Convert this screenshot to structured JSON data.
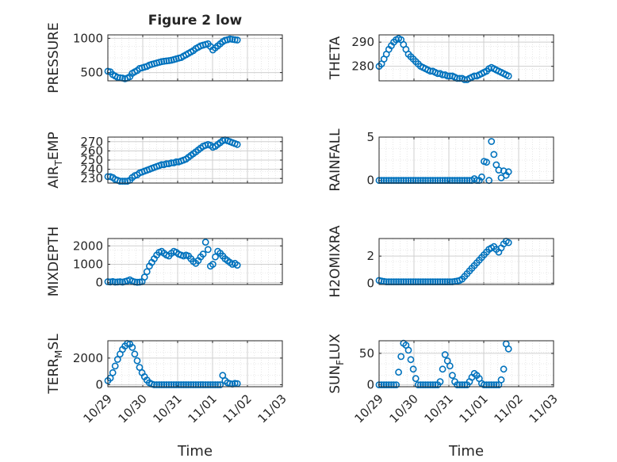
{
  "figure": {
    "title": "Figure 2 low",
    "xlabel_left": "Time",
    "xlabel_right": "Time",
    "marker_color": "#0072BD",
    "x_tick_labels": [
      "10/29",
      "10/30",
      "10/31",
      "11/01",
      "11/02",
      "11/03"
    ]
  },
  "chart_data": [
    {
      "type": "scatter",
      "name": "pressure",
      "title": "Figure 2 low",
      "ylabel": "PRESSURE",
      "xlabel": "",
      "xlim": [
        0,
        5
      ],
      "ylim": [
        380,
        1050
      ],
      "yticks": [
        500,
        1000
      ],
      "grid": true,
      "x": [
        0.0,
        0.07,
        0.14,
        0.21,
        0.28,
        0.35,
        0.42,
        0.49,
        0.56,
        0.63,
        0.7,
        0.77,
        0.84,
        0.91,
        0.98,
        1.05,
        1.12,
        1.19,
        1.26,
        1.33,
        1.4,
        1.47,
        1.54,
        1.61,
        1.68,
        1.75,
        1.82,
        1.89,
        1.96,
        2.03,
        2.1,
        2.17,
        2.24,
        2.31,
        2.38,
        2.45,
        2.52,
        2.59,
        2.66,
        2.73,
        2.8,
        2.87,
        2.94,
        3.01,
        3.08,
        3.15,
        3.22,
        3.29,
        3.36,
        3.43,
        3.5,
        3.57,
        3.64,
        3.71
      ],
      "y": [
        520,
        510,
        470,
        450,
        430,
        425,
        420,
        410,
        420,
        440,
        490,
        510,
        530,
        560,
        570,
        580,
        590,
        610,
        620,
        630,
        640,
        650,
        660,
        665,
        670,
        675,
        680,
        690,
        700,
        710,
        720,
        740,
        760,
        780,
        800,
        820,
        850,
        870,
        890,
        900,
        910,
        920,
        880,
        830,
        860,
        890,
        920,
        950,
        970,
        980,
        990,
        985,
        980,
        975
      ]
    },
    {
      "type": "scatter",
      "name": "theta",
      "ylabel": "THETA",
      "xlabel": "",
      "xlim": [
        0,
        5
      ],
      "ylim": [
        274,
        293
      ],
      "yticks": [
        280,
        290
      ],
      "grid": true,
      "x": [
        0.0,
        0.07,
        0.14,
        0.21,
        0.28,
        0.35,
        0.42,
        0.49,
        0.56,
        0.63,
        0.7,
        0.77,
        0.84,
        0.91,
        0.98,
        1.05,
        1.12,
        1.19,
        1.26,
        1.33,
        1.4,
        1.47,
        1.54,
        1.61,
        1.68,
        1.75,
        1.82,
        1.89,
        1.96,
        2.03,
        2.1,
        2.17,
        2.24,
        2.31,
        2.38,
        2.45,
        2.52,
        2.59,
        2.66,
        2.73,
        2.8,
        2.87,
        2.94,
        3.01,
        3.08,
        3.15,
        3.22,
        3.29,
        3.36,
        3.43,
        3.5,
        3.57,
        3.64,
        3.71
      ],
      "y": [
        280,
        281,
        283,
        285,
        287,
        288.5,
        290,
        291,
        291.5,
        291,
        289,
        287,
        285,
        284,
        283,
        282,
        281,
        280,
        279.5,
        279,
        278.5,
        278,
        278,
        277.5,
        277,
        277,
        276.5,
        276.5,
        276,
        276,
        276,
        275.5,
        275,
        275,
        275,
        274.5,
        274.5,
        275,
        275.5,
        276,
        276,
        276.5,
        277,
        277.5,
        278,
        279,
        279.5,
        279,
        278.5,
        278,
        277.5,
        277,
        276.5,
        276
      ]
    },
    {
      "type": "scatter",
      "name": "air_temp",
      "ylabel": "AIR_TEMP",
      "xlabel": "",
      "xlim": [
        0,
        5
      ],
      "ylim": [
        225,
        275
      ],
      "yticks": [
        230,
        240,
        250,
        260,
        270
      ],
      "grid": true,
      "x": [
        0.0,
        0.07,
        0.14,
        0.21,
        0.28,
        0.35,
        0.42,
        0.49,
        0.56,
        0.63,
        0.7,
        0.77,
        0.84,
        0.91,
        0.98,
        1.05,
        1.12,
        1.19,
        1.26,
        1.33,
        1.4,
        1.47,
        1.54,
        1.61,
        1.68,
        1.75,
        1.82,
        1.89,
        1.96,
        2.03,
        2.1,
        2.17,
        2.24,
        2.31,
        2.38,
        2.45,
        2.52,
        2.59,
        2.66,
        2.73,
        2.8,
        2.87,
        2.94,
        3.01,
        3.08,
        3.15,
        3.22,
        3.29,
        3.36,
        3.43,
        3.5,
        3.57,
        3.64,
        3.71
      ],
      "y": [
        232,
        232,
        231,
        229,
        228,
        227,
        227,
        227,
        227,
        228,
        231,
        233,
        234,
        236,
        237,
        238,
        239,
        240,
        241,
        242,
        243,
        244,
        245,
        245,
        246,
        246,
        247,
        247,
        248,
        248,
        249,
        250,
        251,
        253,
        255,
        257,
        259,
        261,
        263,
        265,
        266,
        267,
        266,
        264,
        265,
        267,
        269,
        271,
        272,
        271,
        270,
        269,
        268,
        267
      ]
    },
    {
      "type": "scatter",
      "name": "rainfall",
      "ylabel": "RAINFALL",
      "xlabel": "",
      "xlim": [
        0,
        5
      ],
      "ylim": [
        -0.3,
        5
      ],
      "yticks": [
        0,
        5
      ],
      "grid": true,
      "x": [
        0.0,
        0.07,
        0.14,
        0.21,
        0.28,
        0.35,
        0.42,
        0.49,
        0.56,
        0.63,
        0.7,
        0.77,
        0.84,
        0.91,
        0.98,
        1.05,
        1.12,
        1.19,
        1.26,
        1.33,
        1.4,
        1.47,
        1.54,
        1.61,
        1.68,
        1.75,
        1.82,
        1.89,
        1.96,
        2.03,
        2.1,
        2.17,
        2.24,
        2.31,
        2.38,
        2.45,
        2.52,
        2.59,
        2.66,
        2.73,
        2.8,
        2.87,
        2.94,
        3.01,
        3.08,
        3.15,
        3.22,
        3.29,
        3.36,
        3.43,
        3.5,
        3.57,
        3.64,
        3.71
      ],
      "y": [
        0,
        0,
        0,
        0,
        0,
        0,
        0,
        0,
        0,
        0,
        0,
        0,
        0,
        0,
        0,
        0,
        0,
        0,
        0,
        0,
        0,
        0,
        0,
        0,
        0,
        0,
        0,
        0,
        0,
        0,
        0,
        0,
        0,
        0,
        0,
        0,
        0,
        0,
        0,
        0.2,
        0,
        0,
        0.4,
        2.2,
        2.1,
        0,
        4.5,
        3.0,
        1.8,
        1.2,
        0.3,
        1.1,
        0.6,
        1.0
      ]
    },
    {
      "type": "scatter",
      "name": "mixdepth",
      "ylabel": "MIXDEPTH",
      "xlabel": "",
      "xlim": [
        0,
        5
      ],
      "ylim": [
        -100,
        2400
      ],
      "yticks": [
        0,
        1000,
        2000
      ],
      "grid": true,
      "x": [
        0.0,
        0.07,
        0.14,
        0.21,
        0.28,
        0.35,
        0.42,
        0.49,
        0.56,
        0.63,
        0.7,
        0.77,
        0.84,
        0.91,
        0.98,
        1.05,
        1.12,
        1.19,
        1.26,
        1.33,
        1.4,
        1.47,
        1.54,
        1.61,
        1.68,
        1.75,
        1.82,
        1.89,
        1.96,
        2.03,
        2.1,
        2.17,
        2.24,
        2.31,
        2.38,
        2.45,
        2.52,
        2.59,
        2.66,
        2.73,
        2.8,
        2.87,
        2.94,
        3.01,
        3.08,
        3.15,
        3.22,
        3.29,
        3.36,
        3.43,
        3.5,
        3.57,
        3.64,
        3.71
      ],
      "y": [
        50,
        40,
        60,
        30,
        40,
        50,
        30,
        60,
        100,
        150,
        80,
        40,
        20,
        30,
        50,
        300,
        600,
        900,
        1100,
        1300,
        1500,
        1650,
        1700,
        1600,
        1500,
        1450,
        1600,
        1700,
        1650,
        1550,
        1500,
        1450,
        1500,
        1450,
        1300,
        1150,
        1050,
        1200,
        1400,
        1550,
        2200,
        1800,
        900,
        1000,
        1400,
        1700,
        1600,
        1450,
        1300,
        1200,
        1100,
        1000,
        1050,
        950
      ]
    },
    {
      "type": "scatter",
      "name": "h2omixra",
      "ylabel": "H2OMIXRA",
      "xlabel": "",
      "xlim": [
        0,
        5
      ],
      "ylim": [
        -0.1,
        3.3
      ],
      "yticks": [
        0,
        2
      ],
      "grid": true,
      "x": [
        0.0,
        0.07,
        0.14,
        0.21,
        0.28,
        0.35,
        0.42,
        0.49,
        0.56,
        0.63,
        0.7,
        0.77,
        0.84,
        0.91,
        0.98,
        1.05,
        1.12,
        1.19,
        1.26,
        1.33,
        1.4,
        1.47,
        1.54,
        1.61,
        1.68,
        1.75,
        1.82,
        1.89,
        1.96,
        2.03,
        2.1,
        2.17,
        2.24,
        2.31,
        2.38,
        2.45,
        2.52,
        2.59,
        2.66,
        2.73,
        2.8,
        2.87,
        2.94,
        3.01,
        3.08,
        3.15,
        3.22,
        3.29,
        3.36,
        3.43,
        3.5,
        3.57,
        3.64,
        3.71
      ],
      "y": [
        0.2,
        0.15,
        0.12,
        0.1,
        0.1,
        0.1,
        0.1,
        0.1,
        0.1,
        0.1,
        0.1,
        0.1,
        0.1,
        0.1,
        0.1,
        0.1,
        0.1,
        0.1,
        0.1,
        0.1,
        0.1,
        0.1,
        0.1,
        0.1,
        0.1,
        0.1,
        0.1,
        0.1,
        0.1,
        0.1,
        0.1,
        0.12,
        0.15,
        0.2,
        0.3,
        0.5,
        0.7,
        0.9,
        1.1,
        1.3,
        1.5,
        1.7,
        1.9,
        2.1,
        2.3,
        2.5,
        2.6,
        2.7,
        2.5,
        2.3,
        2.6,
        2.9,
        3.1,
        3.0
      ]
    },
    {
      "type": "scatter",
      "name": "terr_msl",
      "ylabel": "TERR_MSL",
      "xlabel": "Time",
      "xlim": [
        0,
        5
      ],
      "ylim": [
        -150,
        3300
      ],
      "yticks": [
        0,
        2000
      ],
      "grid": true,
      "x": [
        0.0,
        0.07,
        0.14,
        0.21,
        0.28,
        0.35,
        0.42,
        0.49,
        0.56,
        0.63,
        0.7,
        0.77,
        0.84,
        0.91,
        0.98,
        1.05,
        1.12,
        1.19,
        1.26,
        1.33,
        1.4,
        1.47,
        1.54,
        1.61,
        1.68,
        1.75,
        1.82,
        1.89,
        1.96,
        2.03,
        2.1,
        2.17,
        2.24,
        2.31,
        2.38,
        2.45,
        2.52,
        2.59,
        2.66,
        2.73,
        2.8,
        2.87,
        2.94,
        3.01,
        3.08,
        3.15,
        3.22,
        3.29,
        3.36,
        3.43,
        3.5,
        3.57,
        3.64,
        3.71
      ],
      "y": [
        300,
        500,
        900,
        1400,
        1900,
        2300,
        2650,
        2900,
        3100,
        3050,
        2800,
        2300,
        1800,
        1300,
        900,
        600,
        350,
        150,
        50,
        0,
        0,
        0,
        0,
        0,
        0,
        0,
        0,
        0,
        0,
        0,
        0,
        0,
        0,
        0,
        0,
        0,
        0,
        0,
        0,
        0,
        0,
        0,
        0,
        0,
        0,
        0,
        0,
        700,
        300,
        150,
        80,
        50,
        100,
        80
      ]
    },
    {
      "type": "scatter",
      "name": "sun_flux",
      "ylabel": "SUN_FLUX",
      "xlabel": "Time",
      "xlim": [
        0,
        5
      ],
      "ylim": [
        -3,
        70
      ],
      "yticks": [
        0,
        50
      ],
      "grid": true,
      "x": [
        0.0,
        0.07,
        0.14,
        0.21,
        0.28,
        0.35,
        0.42,
        0.49,
        0.56,
        0.63,
        0.7,
        0.77,
        0.84,
        0.91,
        0.98,
        1.05,
        1.12,
        1.19,
        1.26,
        1.33,
        1.4,
        1.47,
        1.54,
        1.61,
        1.68,
        1.75,
        1.82,
        1.89,
        1.96,
        2.03,
        2.1,
        2.17,
        2.24,
        2.31,
        2.38,
        2.45,
        2.52,
        2.59,
        2.66,
        2.73,
        2.8,
        2.87,
        2.94,
        3.01,
        3.08,
        3.15,
        3.22,
        3.29,
        3.36,
        3.43,
        3.5,
        3.57,
        3.64,
        3.71
      ],
      "y": [
        0,
        0,
        0,
        0,
        0,
        0,
        0,
        0,
        20,
        45,
        66,
        63,
        55,
        40,
        25,
        10,
        0,
        0,
        0,
        0,
        0,
        0,
        0,
        0,
        0,
        5,
        25,
        48,
        38,
        30,
        15,
        5,
        0,
        0,
        0,
        0,
        0,
        5,
        12,
        18,
        15,
        10,
        2,
        0,
        0,
        0,
        0,
        0,
        0,
        0,
        8,
        25,
        65,
        57
      ]
    }
  ]
}
